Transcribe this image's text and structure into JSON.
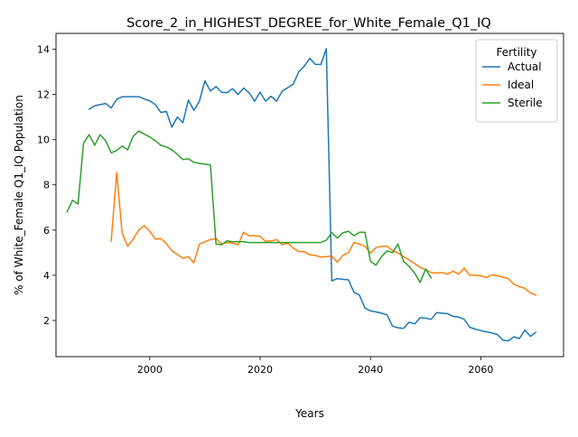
{
  "chart_data": {
    "type": "line",
    "title": "Score_2_in_HIGHEST_DEGREE_for_White_Female_Q1_IQ",
    "xlabel": "Years",
    "ylabel": "% of White_Female Q1_IQ Population",
    "xlim": [
      1983,
      2075
    ],
    "ylim": [
      0.4,
      14.7
    ],
    "xticks": [
      2000,
      2020,
      2040,
      2060
    ],
    "yticks": [
      2,
      4,
      6,
      8,
      10,
      12,
      14
    ],
    "grid": false,
    "legend": {
      "title": "Fertility",
      "position": "top-right"
    },
    "series": [
      {
        "name": "Actual",
        "color": "#1f77b4",
        "x": [
          1989,
          1990,
          1991,
          1992,
          1993,
          1994,
          1995,
          1996,
          1997,
          1998,
          1999,
          2000,
          2001,
          2002,
          2003,
          2004,
          2005,
          2006,
          2007,
          2008,
          2009,
          2010,
          2011,
          2012,
          2013,
          2014,
          2015,
          2016,
          2017,
          2018,
          2019,
          2020,
          2021,
          2022,
          2023,
          2024,
          2025,
          2026,
          2027,
          2028,
          2029,
          2030,
          2031,
          2032,
          2033,
          2034,
          2035,
          2036,
          2037,
          2038,
          2039,
          2040,
          2041,
          2042,
          2043,
          2044,
          2045,
          2046,
          2047,
          2048,
          2049,
          2050,
          2051,
          2052,
          2053,
          2054,
          2055,
          2056,
          2057,
          2058,
          2059,
          2060,
          2061,
          2062,
          2063,
          2064,
          2065,
          2066,
          2067,
          2068,
          2069,
          2070
        ],
        "y": [
          11.35,
          11.5,
          11.55,
          11.6,
          11.4,
          11.78,
          11.9,
          11.9,
          11.9,
          11.9,
          11.8,
          11.72,
          11.55,
          11.2,
          11.25,
          10.55,
          11.0,
          10.75,
          11.75,
          11.3,
          11.7,
          12.6,
          12.15,
          12.35,
          12.1,
          12.08,
          12.25,
          12.0,
          12.28,
          12.08,
          11.7,
          12.1,
          11.7,
          11.92,
          11.7,
          12.15,
          12.3,
          12.45,
          13.0,
          13.25,
          13.6,
          13.33,
          13.32,
          14.02,
          3.75,
          3.85,
          3.82,
          3.8,
          3.25,
          3.12,
          2.55,
          2.42,
          2.38,
          2.32,
          2.25,
          1.75,
          1.68,
          1.65,
          1.92,
          1.85,
          2.12,
          2.1,
          2.05,
          2.35,
          2.32,
          2.3,
          2.18,
          2.15,
          2.05,
          1.7,
          1.62,
          1.55,
          1.5,
          1.45,
          1.38,
          1.13,
          1.1,
          1.28,
          1.2,
          1.58,
          1.3,
          1.48
        ]
      },
      {
        "name": "Ideal",
        "color": "#ff7f0e",
        "x": [
          1993,
          1994,
          1995,
          1996,
          1997,
          1998,
          1999,
          2000,
          2001,
          2002,
          2003,
          2004,
          2005,
          2006,
          2007,
          2008,
          2009,
          2010,
          2011,
          2012,
          2013,
          2014,
          2015,
          2016,
          2017,
          2018,
          2019,
          2020,
          2021,
          2022,
          2023,
          2024,
          2025,
          2026,
          2027,
          2028,
          2029,
          2030,
          2031,
          2032,
          2033,
          2034,
          2035,
          2036,
          2037,
          2038,
          2039,
          2040,
          2041,
          2042,
          2043,
          2044,
          2045,
          2046,
          2047,
          2048,
          2049,
          2050,
          2051,
          2052,
          2053,
          2054,
          2055,
          2056,
          2057,
          2058,
          2059,
          2060,
          2061,
          2062,
          2063,
          2064,
          2065,
          2066,
          2067,
          2068,
          2069,
          2070
        ],
        "y": [
          5.5,
          8.55,
          5.85,
          5.28,
          5.6,
          6.0,
          6.2,
          5.95,
          5.6,
          5.62,
          5.4,
          5.08,
          4.92,
          4.75,
          4.82,
          4.55,
          5.38,
          5.48,
          5.58,
          5.62,
          5.38,
          5.45,
          5.42,
          5.35,
          5.9,
          5.75,
          5.75,
          5.72,
          5.5,
          5.52,
          5.58,
          5.35,
          5.42,
          5.2,
          5.05,
          5.05,
          4.9,
          4.88,
          4.8,
          4.82,
          4.85,
          4.58,
          4.88,
          5.0,
          5.45,
          5.38,
          5.28,
          4.98,
          5.22,
          5.28,
          5.28,
          5.1,
          4.98,
          4.82,
          4.68,
          4.52,
          4.35,
          4.25,
          4.12,
          4.1,
          4.12,
          4.05,
          4.18,
          4.05,
          4.32,
          4.0,
          4.0,
          3.98,
          3.9,
          4.02,
          3.98,
          3.92,
          3.85,
          3.6,
          3.5,
          3.42,
          3.22,
          3.12
        ]
      },
      {
        "name": "Sterile",
        "color": "#2ca02c",
        "x": [
          1985,
          1986,
          1987,
          1988,
          1989,
          1990,
          1991,
          1992,
          1993,
          1994,
          1995,
          1996,
          1997,
          1998,
          1999,
          2000,
          2001,
          2002,
          2003,
          2004,
          2005,
          2006,
          2007,
          2008,
          2009,
          2010,
          2011,
          2012,
          2013,
          2014,
          2015,
          2016,
          2017,
          2018,
          2019,
          2020,
          2021,
          2022,
          2023,
          2024,
          2025,
          2026,
          2027,
          2028,
          2029,
          2030,
          2031,
          2032,
          2033,
          2034,
          2035,
          2036,
          2037,
          2038,
          2039,
          2040,
          2041,
          2042,
          2043,
          2044,
          2045,
          2046,
          2047,
          2048,
          2049,
          2050,
          2051
        ],
        "y": [
          6.8,
          7.32,
          7.15,
          9.85,
          10.22,
          9.75,
          10.22,
          9.95,
          9.42,
          9.52,
          9.72,
          9.55,
          10.15,
          10.38,
          10.25,
          10.12,
          9.95,
          9.75,
          9.68,
          9.55,
          9.35,
          9.12,
          9.15,
          9.0,
          8.95,
          8.92,
          8.88,
          5.38,
          5.35,
          5.52,
          5.48,
          5.48,
          5.48,
          5.45,
          5.45,
          5.45,
          5.45,
          5.45,
          5.45,
          5.45,
          5.45,
          5.45,
          5.45,
          5.45,
          5.45,
          5.45,
          5.45,
          5.55,
          5.88,
          5.65,
          5.88,
          5.95,
          5.75,
          5.9,
          5.9,
          4.62,
          4.45,
          4.82,
          5.08,
          5.0,
          5.38,
          4.62,
          4.4,
          4.1,
          3.68,
          4.28,
          3.88
        ]
      }
    ]
  }
}
